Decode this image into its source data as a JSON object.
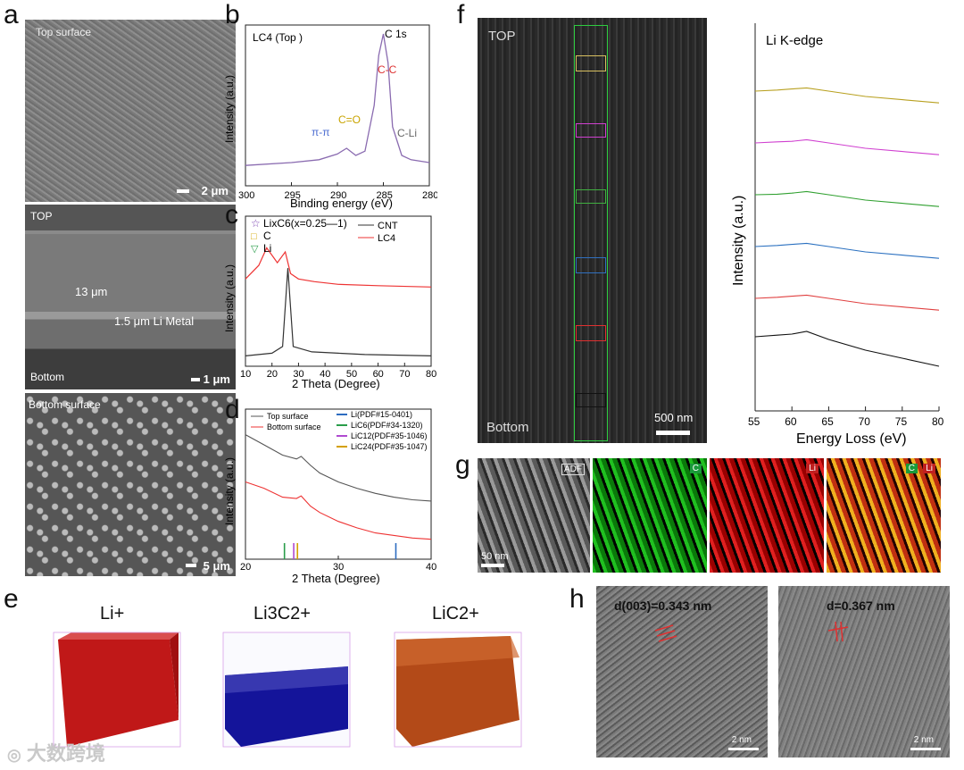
{
  "panels": {
    "a": {
      "label": "a",
      "top_title": "Top surface",
      "top_scale": "2 μm",
      "cross_top": "TOP",
      "cross_thickness": "13 μm",
      "cross_li": "1.5 μm Li Metal",
      "cross_bottom": "Bottom",
      "cross_scale": "1 μm",
      "bottom_title": "Bottom surface",
      "bottom_scale": "5 μm"
    },
    "b": {
      "label": "b",
      "sample": "LC4 (Top )",
      "edge": "C 1s",
      "peak_cc": "C-C",
      "peak_co": "C=O",
      "peak_pp": "π-π",
      "peak_cli": "C-Li",
      "xlabel": "Binding energy (eV)",
      "ylabel": "Intensity (a.u.)",
      "xticks": [
        "300",
        "295",
        "290",
        "285",
        "280"
      ]
    },
    "c": {
      "label": "c",
      "legend_lixc6": "LixC6(x=0.25—1)",
      "legend_c": "C",
      "legend_li": "Li",
      "legend_cnt": "CNT",
      "legend_lc4": "LC4",
      "xlabel": "2 Theta (Degree)",
      "ylabel": "Intensity (a.u.)",
      "xticks": [
        "10",
        "20",
        "30",
        "40",
        "50",
        "60",
        "70",
        "80"
      ]
    },
    "d": {
      "label": "d",
      "legend_top": "Top surface",
      "legend_bottom": "Bottom surface",
      "ref_li": "Li(PDF#15-0401)",
      "ref_lic6": "LiC6(PDF#34-1320)",
      "ref_lic12": "LiC12(PDF#35-1046)",
      "ref_lic24": "LiC24(PDF#35-1047)",
      "xlabel": "2 Theta (Degree)",
      "ylabel": "Intensity (a.u.)",
      "xticks": [
        "20",
        "30",
        "40"
      ]
    },
    "e": {
      "label": "e",
      "t1": "Li+",
      "t2": "Li3C2+",
      "t3": "LiC2+"
    },
    "f": {
      "label": "f",
      "top": "TOP",
      "bottom": "Bottom",
      "scale": "500 nm",
      "edge": "Li K-edge",
      "xlabel": "Energy Loss (eV)",
      "ylabel": "Intensity (a.u.)",
      "xticks": [
        "55",
        "60",
        "65",
        "70",
        "75",
        "80"
      ]
    },
    "g": {
      "label": "g",
      "adf": "ADF",
      "c": "C",
      "li": "Li",
      "scale": "50 nm"
    },
    "h": {
      "label": "h",
      "d1": "d(003)=0.343 nm",
      "d2": "d=0.367 nm",
      "scale1": "2 nm",
      "scale2": "2 nm"
    }
  },
  "watermark": "大数跨境",
  "chart_data": [
    {
      "type": "line",
      "panel": "b",
      "title": "C 1s",
      "xlabel": "Binding energy (eV)",
      "ylabel": "Intensity (a.u.)",
      "xlim": [
        300,
        280
      ],
      "series": [
        {
          "name": "LC4 (Top)",
          "x": [
            300,
            295,
            292,
            290,
            289,
            288,
            287,
            286,
            285.5,
            285,
            284.5,
            284,
            283,
            282,
            280
          ],
          "y": [
            0.08,
            0.1,
            0.12,
            0.16,
            0.2,
            0.15,
            0.18,
            0.5,
            0.85,
            1.0,
            0.8,
            0.35,
            0.15,
            0.12,
            0.1
          ]
        }
      ],
      "annotations": [
        "C-C",
        "C=O",
        "π-π",
        "C-Li"
      ]
    },
    {
      "type": "line",
      "panel": "c",
      "xlabel": "2 Theta (Degree)",
      "ylabel": "Intensity (a.u.)",
      "xlim": [
        10,
        80
      ],
      "series": [
        {
          "name": "CNT",
          "x": [
            10,
            15,
            20,
            24,
            26,
            28,
            35,
            45,
            55,
            80
          ],
          "y": [
            0.05,
            0.06,
            0.07,
            0.12,
            0.7,
            0.12,
            0.08,
            0.07,
            0.06,
            0.05
          ]
        },
        {
          "name": "LC4",
          "x": [
            10,
            15,
            18,
            22,
            25,
            27,
            30,
            36,
            45,
            60,
            80
          ],
          "y": [
            0.62,
            0.72,
            0.85,
            0.74,
            0.82,
            0.66,
            0.62,
            0.6,
            0.58,
            0.57,
            0.56
          ]
        }
      ]
    },
    {
      "type": "line",
      "panel": "d",
      "xlabel": "2 Theta (Degree)",
      "ylabel": "Intensity (a.u.)",
      "xlim": [
        20,
        40
      ],
      "series": [
        {
          "name": "Top surface",
          "x": [
            20,
            22,
            24,
            25.5,
            26,
            27,
            28,
            30,
            32,
            34,
            36,
            38,
            40
          ],
          "y": [
            0.92,
            0.84,
            0.76,
            0.73,
            0.75,
            0.68,
            0.62,
            0.55,
            0.5,
            0.46,
            0.43,
            0.41,
            0.4
          ]
        },
        {
          "name": "Bottom surface",
          "x": [
            20,
            22,
            24,
            25.5,
            26,
            27,
            28,
            30,
            32,
            34,
            36,
            38,
            40
          ],
          "y": [
            0.55,
            0.5,
            0.43,
            0.42,
            0.44,
            0.36,
            0.31,
            0.24,
            0.19,
            0.15,
            0.13,
            0.11,
            0.1
          ]
        }
      ],
      "reference_lines": [
        {
          "name": "Li(PDF#15-0401)",
          "x": 36.2
        },
        {
          "name": "LiC6(PDF#34-1320)",
          "x": 24.2
        },
        {
          "name": "LiC12(PDF#35-1046)",
          "x": 25.2
        },
        {
          "name": "LiC24(PDF#35-1047)",
          "x": 25.6
        }
      ]
    },
    {
      "type": "line",
      "panel": "f",
      "title": "Li K-edge",
      "xlabel": "Energy Loss (eV)",
      "ylabel": "Intensity (a.u.)",
      "xlim": [
        55,
        80
      ],
      "series": [
        {
          "name": "yellow",
          "offset": 5,
          "x": [
            55,
            58,
            60,
            62,
            65,
            70,
            75,
            80
          ],
          "y": [
            0.3,
            0.32,
            0.34,
            0.36,
            0.3,
            0.2,
            0.14,
            0.08
          ]
        },
        {
          "name": "magenta",
          "offset": 4,
          "x": [
            55,
            58,
            60,
            62,
            65,
            70,
            75,
            80
          ],
          "y": [
            0.3,
            0.32,
            0.33,
            0.36,
            0.3,
            0.2,
            0.14,
            0.08
          ]
        },
        {
          "name": "green",
          "offset": 3,
          "x": [
            55,
            58,
            60,
            62,
            65,
            70,
            75,
            80
          ],
          "y": [
            0.3,
            0.31,
            0.33,
            0.36,
            0.3,
            0.2,
            0.14,
            0.08
          ]
        },
        {
          "name": "blue",
          "offset": 2,
          "x": [
            55,
            58,
            60,
            62,
            65,
            70,
            75,
            80
          ],
          "y": [
            0.3,
            0.32,
            0.34,
            0.36,
            0.3,
            0.2,
            0.14,
            0.08
          ]
        },
        {
          "name": "red",
          "offset": 1,
          "x": [
            55,
            58,
            60,
            62,
            65,
            70,
            75,
            80
          ],
          "y": [
            0.3,
            0.32,
            0.34,
            0.36,
            0.3,
            0.2,
            0.14,
            0.08
          ]
        },
        {
          "name": "black",
          "offset": 0,
          "x": [
            55,
            58,
            60,
            62,
            65,
            70,
            75,
            80
          ],
          "y": [
            0.55,
            0.58,
            0.6,
            0.65,
            0.5,
            0.3,
            0.15,
            0.0
          ]
        }
      ]
    }
  ]
}
